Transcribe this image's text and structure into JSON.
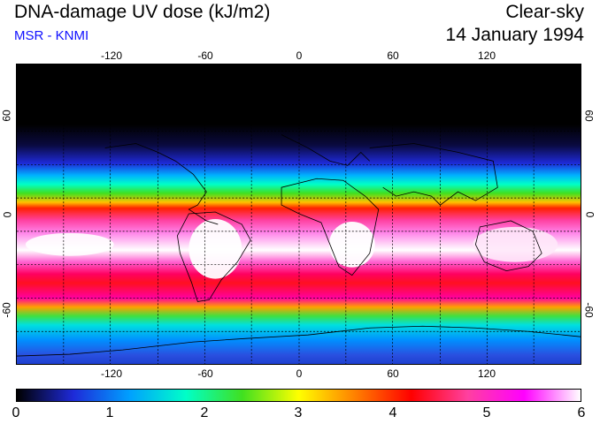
{
  "header": {
    "title": "DNA-damage UV dose (kJ/m2)",
    "subtitle": "MSR - KNMI",
    "sky_condition": "Clear-sky",
    "date": "14 January 1994"
  },
  "map": {
    "lon_ticks": [
      "-120",
      "-60",
      "0",
      "60",
      "120"
    ],
    "lat_ticks_left": [
      "60",
      "0",
      "-60"
    ],
    "lat_ticks_right": [
      "60",
      "0",
      "-60"
    ],
    "lon_range": [
      -180,
      180
    ],
    "lat_range": [
      -90,
      90
    ],
    "grid": "dashed, every 20 degrees"
  },
  "colorbar": {
    "labels": [
      "0",
      "1",
      "2",
      "3",
      "4",
      "5",
      "6"
    ],
    "colors": [
      "#000000",
      "#1e2ad8",
      "#00a0ff",
      "#00ffc8",
      "#40e020",
      "#ffff00",
      "#ff8000",
      "#ff0000",
      "#ff40a0",
      "#ff00ff",
      "#ffffff"
    ],
    "min": 0,
    "max": 6
  },
  "colors": {
    "subtitle": "#1010ff",
    "background": "#ffffff"
  }
}
